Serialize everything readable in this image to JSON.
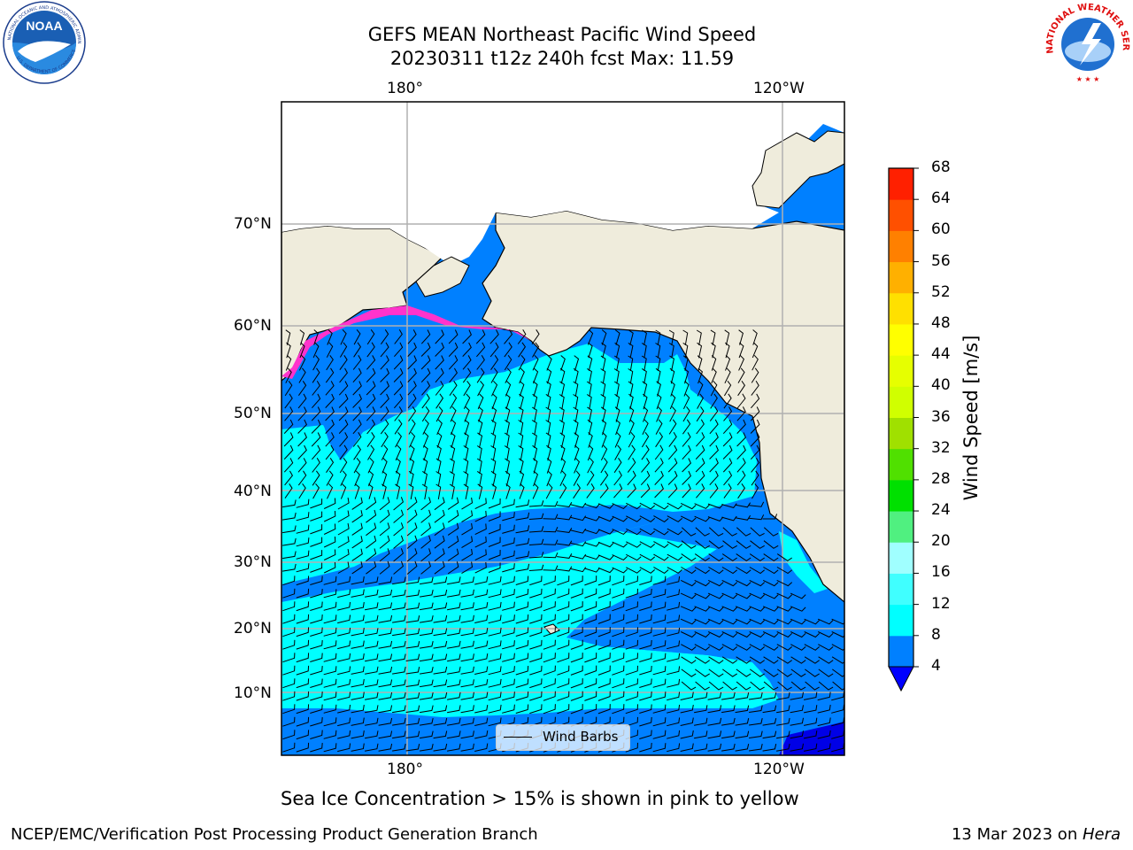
{
  "header": {
    "title_line1": "GEFS MEAN Northeast Pacific Wind Speed",
    "title_line2": "20230311 t12z 240h fcst   Max: 11.59",
    "left_logo_text": "NOAA",
    "left_logo_ring_text": "NATIONAL OCEANIC AND ATMOSPHERIC ADMINISTRATION",
    "left_logo_ring_text2": "U.S. DEPARTMENT OF COMMERCE",
    "right_logo_ring_text": "NATIONAL WEATHER SERVICE"
  },
  "map": {
    "lon_labels_top": [
      "180°",
      "120°W"
    ],
    "lon_labels_bottom": [
      "180°",
      "120°W"
    ],
    "lat_labels": [
      "70°N",
      "60°N",
      "50°N",
      "40°N",
      "30°N",
      "20°N",
      "10°N"
    ],
    "legend_label": "Wind Barbs",
    "colors": {
      "land": "#efecdc",
      "ocean_4_8": "#0080ff",
      "ocean_8_12": "#00ffff",
      "ocean_low": "#0000e6",
      "grid": "#b0b0b0",
      "sea_ice": "#ff33cc"
    }
  },
  "colorbar": {
    "label": "Wind Speed [m/s]",
    "ticks": [
      "68",
      "64",
      "60",
      "56",
      "52",
      "48",
      "44",
      "40",
      "36",
      "32",
      "28",
      "24",
      "20",
      "16",
      "12",
      "8",
      "4"
    ],
    "colors_low_to_high": [
      "#0080ff",
      "#00ffff",
      "#40ffff",
      "#a0ffff",
      "#50f080",
      "#00e000",
      "#50e000",
      "#a0e000",
      "#d0ff00",
      "#e6ff00",
      "#ffff00",
      "#ffe000",
      "#ffb000",
      "#ff8000",
      "#ff5000",
      "#ff2000"
    ],
    "underflow_color": "#0000ff"
  },
  "caption": "Sea Ice Concentration > 15% is shown in pink to yellow",
  "footer": {
    "left": "NCEP/EMC/Verification Post Processing Product Generation Branch",
    "right_date": "13 Mar 2023 on ",
    "right_host": "Hera"
  }
}
